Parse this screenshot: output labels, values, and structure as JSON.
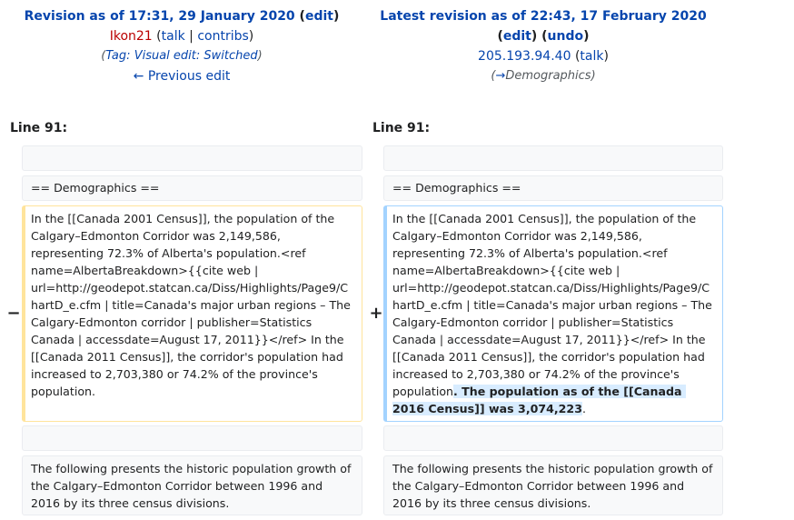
{
  "left": {
    "title_prefix": "Revision as of 17:31, 29 January 2020",
    "edit_link": "edit",
    "user": "Ikon21",
    "talk": "talk",
    "contribs": "contribs",
    "tag_label": "Tag:",
    "tag_value": "Visual edit: Switched",
    "previous_edit": "← Previous edit",
    "line_label": "Line 91:"
  },
  "right": {
    "title_prefix": "Latest revision as of 22:43, 17 February 2020",
    "edit_link": "edit",
    "undo_link": "undo",
    "user": "205.193.94.40",
    "talk": "talk",
    "summary_arrow": "→",
    "summary_section": "Demographics",
    "line_label": "Line 91:"
  },
  "diff": {
    "heading": "== Demographics ==",
    "para_common": "In the [[Canada 2001 Census]], the population of the Calgary–Edmonton Corridor was 2,149,586, representing 72.3% of Alberta's population.<ref name=AlbertaBreakdown>{{cite web | url=http://geodepot.statcan.ca/Diss/Highlights/Page9/ChartD_e.cfm | title=Canada's major urban regions – The Calgary-Edmonton corridor | publisher=Statistics Canada | accessdate=August 17, 2011}}</ref> In the [[Canada 2011 Census]], the corridor's population had increased to 2,703,380 or 74.2% of the province's population",
    "para_left_end": ".",
    "para_inserted": ". The population as of the [[Canada 2016 Census]] was 3,074,223",
    "para_right_end": ".",
    "following": "The following presents the historic population growth of the Calgary–Edmonton Corridor between 1996 and 2016 by its three census divisions.",
    "minus": "−",
    "plus": "+"
  }
}
